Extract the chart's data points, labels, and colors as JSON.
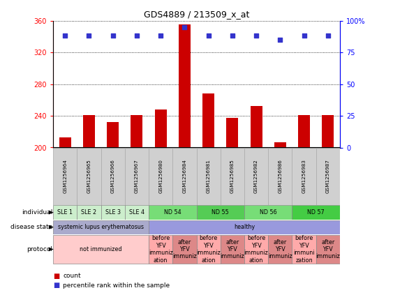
{
  "title": "GDS4889 / 213509_x_at",
  "samples": [
    "GSM1256964",
    "GSM1256965",
    "GSM1256966",
    "GSM1256967",
    "GSM1256980",
    "GSM1256984",
    "GSM1256981",
    "GSM1256985",
    "GSM1256982",
    "GSM1256986",
    "GSM1256983",
    "GSM1256987"
  ],
  "counts": [
    213,
    241,
    232,
    241,
    248,
    355,
    268,
    237,
    252,
    207,
    241,
    241
  ],
  "percentiles": [
    88,
    88,
    88,
    88,
    88,
    95,
    88,
    88,
    88,
    85,
    88,
    88
  ],
  "ylim_left": [
    200,
    360
  ],
  "ylim_right": [
    0,
    100
  ],
  "yticks_left": [
    200,
    240,
    280,
    320,
    360
  ],
  "yticks_right": [
    0,
    25,
    50,
    75,
    100
  ],
  "bar_color": "#cc0000",
  "dot_color": "#3333cc",
  "sample_box_color": "#d0d0d0",
  "individual_groups": [
    {
      "label": "SLE 1",
      "start": 0,
      "end": 1,
      "color": "#cceecc"
    },
    {
      "label": "SLE 2",
      "start": 1,
      "end": 2,
      "color": "#cceecc"
    },
    {
      "label": "SLE 3",
      "start": 2,
      "end": 3,
      "color": "#cceecc"
    },
    {
      "label": "SLE 4",
      "start": 3,
      "end": 4,
      "color": "#cceecc"
    },
    {
      "label": "ND 54",
      "start": 4,
      "end": 6,
      "color": "#77dd77"
    },
    {
      "label": "ND 55",
      "start": 6,
      "end": 8,
      "color": "#55cc55"
    },
    {
      "label": "ND 56",
      "start": 8,
      "end": 10,
      "color": "#77dd77"
    },
    {
      "label": "ND 57",
      "start": 10,
      "end": 12,
      "color": "#44cc44"
    }
  ],
  "disease_groups": [
    {
      "label": "systemic lupus erythematosus",
      "start": 0,
      "end": 4,
      "color": "#aaaacc"
    },
    {
      "label": "healthy",
      "start": 4,
      "end": 12,
      "color": "#9999dd"
    }
  ],
  "protocol_groups": [
    {
      "label": "not immunized",
      "start": 0,
      "end": 4,
      "color": "#ffcccc"
    },
    {
      "label": "before\nYFV\nimmuniz\nation",
      "start": 4,
      "end": 5,
      "color": "#ffaaaa"
    },
    {
      "label": "after\nYFV\nimmuniz",
      "start": 5,
      "end": 6,
      "color": "#dd8888"
    },
    {
      "label": "before\nYFV\nimmuniz\nation",
      "start": 6,
      "end": 7,
      "color": "#ffaaaa"
    },
    {
      "label": "after\nYFV\nimmuniz",
      "start": 7,
      "end": 8,
      "color": "#dd8888"
    },
    {
      "label": "before\nYFV\nimmuniz\nation",
      "start": 8,
      "end": 9,
      "color": "#ffaaaa"
    },
    {
      "label": "after\nYFV\nimmuniz",
      "start": 9,
      "end": 10,
      "color": "#dd8888"
    },
    {
      "label": "before\nYFV\nimmuni\nzation",
      "start": 10,
      "end": 11,
      "color": "#ffaaaa"
    },
    {
      "label": "after\nYFV\nimmuniz",
      "start": 11,
      "end": 12,
      "color": "#dd8888"
    }
  ],
  "row_labels": [
    "individual",
    "disease state",
    "protocol"
  ],
  "legend_count_color": "#cc0000",
  "legend_pct_color": "#3333cc",
  "legend_count_label": "count",
  "legend_pct_label": "percentile rank within the sample"
}
